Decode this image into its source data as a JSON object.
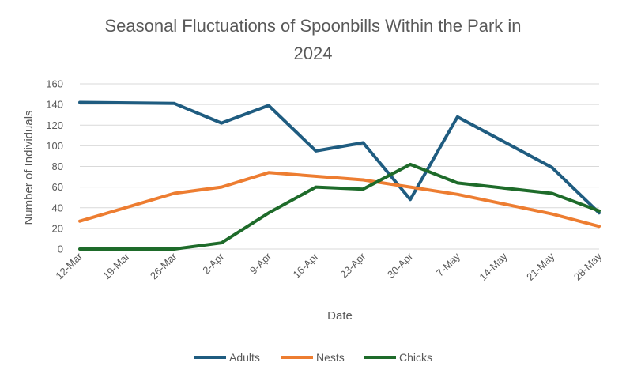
{
  "chart_data": {
    "type": "line",
    "title": "Seasonal Fluctuations of Spoonbills Within the Park in 2024",
    "title_lines": [
      "Seasonal Fluctuations of Spoonbills Within the Park in",
      "2024"
    ],
    "xlabel": "Date",
    "ylabel": "Number of Individuals",
    "ylim": [
      0,
      160
    ],
    "yticks": [
      0,
      20,
      40,
      60,
      80,
      100,
      120,
      140,
      160
    ],
    "grid": true,
    "legend_position": "bottom",
    "x": [
      "12-Mar",
      "19-Mar",
      "26-Mar",
      "2-Apr",
      "9-Apr",
      "16-Apr",
      "23-Apr",
      "30-Apr",
      "7-May",
      "14-May",
      "21-May",
      "28-May"
    ],
    "series": [
      {
        "name": "Adults",
        "color": "#1f5c80",
        "values": [
          142,
          null,
          141,
          122,
          139,
          95,
          103,
          48,
          128,
          null,
          79,
          35
        ]
      },
      {
        "name": "Nests",
        "color": "#ed7d31",
        "values": [
          27,
          null,
          54,
          60,
          74,
          null,
          67,
          null,
          53,
          null,
          34,
          22
        ]
      },
      {
        "name": "Chicks",
        "color": "#1e6b2a",
        "values": [
          0,
          null,
          0,
          6,
          35,
          60,
          58,
          82,
          64,
          null,
          54,
          37
        ]
      }
    ]
  }
}
